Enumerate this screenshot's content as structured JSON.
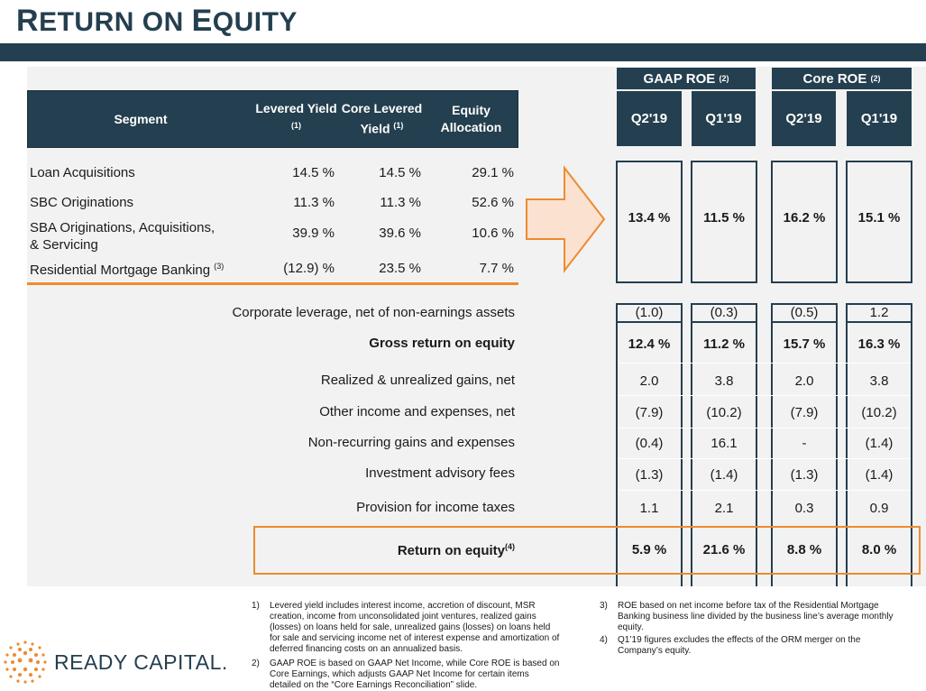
{
  "title": {
    "first_cap": "R",
    "first_rest": "ETURN ON ",
    "second_cap": "E",
    "second_rest": "QUITY"
  },
  "segment_table": {
    "headers": {
      "segment": "Segment",
      "levered_yield": "Levered Yield",
      "levered_yield_note": "(1)",
      "core_levered": "Core Levered",
      "core_levered_yield": "Yield",
      "core_levered_note": "(1)",
      "equity_allocation": "Equity Allocation"
    },
    "rows": [
      {
        "segment": "Loan Acquisitions",
        "note": "",
        "levered": "14.5 %",
        "core": "14.5 %",
        "equity": "29.1 %"
      },
      {
        "segment": "SBC Originations",
        "note": "",
        "levered": "11.3 %",
        "core": "11.3 %",
        "equity": "52.6 %"
      },
      {
        "segment": "SBA Originations, Acquisitions,",
        "segment_line2": "& Servicing",
        "note": "",
        "levered": "39.9 %",
        "core": "39.6 %",
        "equity": "10.6 %"
      },
      {
        "segment": "Residential Mortgage Banking",
        "note": "(3)",
        "levered": "(12.9) %",
        "core": "23.5 %",
        "equity": "7.7 %"
      }
    ]
  },
  "roe_headers": {
    "gaap": "GAAP ROE",
    "gaap_note": "(2)",
    "core": "Core ROE",
    "core_note": "(2)",
    "periods": [
      "Q2'19",
      "Q1'19",
      "Q2'19",
      "Q1'19"
    ]
  },
  "segment_roe": [
    "13.4 %",
    "11.5 %",
    "16.2 %",
    "15.1 %"
  ],
  "bridge_rows": [
    {
      "label": "Corporate leverage, net of non-earnings assets",
      "values": [
        "(1.0)",
        "(0.3)",
        "(0.5)",
        "1.2"
      ]
    },
    {
      "label": "Gross return on equity",
      "values": [
        "12.4 %",
        "11.2 %",
        "15.7 %",
        "16.3 %"
      ]
    },
    {
      "label": "Realized & unrealized gains, net",
      "values": [
        "2.0",
        "3.8",
        "2.0",
        "3.8"
      ]
    },
    {
      "label": "Other income and expenses, net",
      "values": [
        "(7.9)",
        "(10.2)",
        "(7.9)",
        "(10.2)"
      ]
    },
    {
      "label": "Non-recurring gains and expenses",
      "values": [
        "(0.4)",
        "16.1",
        "-",
        "(1.4)"
      ]
    },
    {
      "label": "Investment advisory fees",
      "values": [
        "(1.3)",
        "(1.4)",
        "(1.3)",
        "(1.4)"
      ]
    },
    {
      "label": "Provision for income taxes",
      "values": [
        "1.1",
        "2.1",
        "0.3",
        "0.9"
      ]
    }
  ],
  "roe_total": {
    "label": "Return on equity",
    "note": "(4)",
    "values": [
      "5.9 %",
      "21.6 %",
      "8.8 %",
      "8.0 %"
    ]
  },
  "logo": {
    "text": "READY CAPITAL",
    "mark": "."
  },
  "footnotes": [
    {
      "num": "1)",
      "lines": [
        "Levered yield includes interest income, accretion of discount, MSR",
        "creation, income from unconsolidated joint ventures, realized gains",
        "(losses) on loans held for sale, unrealized gains (losses) on loans held",
        "for sale and servicing income net of interest expense and amortization of",
        "deferred financing costs on an annualized basis."
      ]
    },
    {
      "num": "2)",
      "lines": [
        "GAAP ROE is based on GAAP Net Income, while Core ROE is based on",
        "Core Earnings, which adjusts GAAP Net Income for certain items",
        "detailed on  the “Core Earnings Reconciliation” slide."
      ]
    },
    {
      "num": "3)",
      "lines": [
        "ROE based on net income before tax of the Residential Mortgage",
        "Banking business line divided by the business line’s average monthly",
        "equity."
      ]
    },
    {
      "num": "4)",
      "lines": [
        "Q1’19 figures excludes the effects of the ORM merger on the",
        "Company’s equity."
      ]
    }
  ],
  "colors": {
    "navy": "#243f4f",
    "orange": "#ed8b2e",
    "arrow_fill": "#fbe1d0",
    "panel": "#f2f2f2"
  }
}
